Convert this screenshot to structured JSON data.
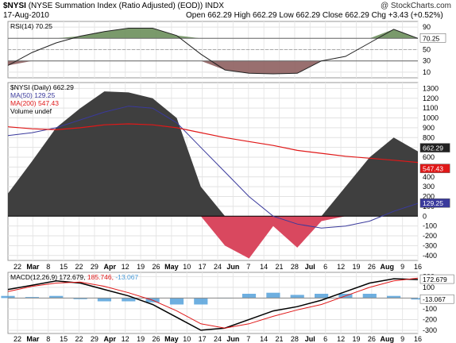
{
  "header": {
    "symbol": "$NYSI",
    "name": "(NYSE Summation Index (Ratio Adjusted) (EOD))",
    "exchange": "INDX",
    "date": "17-Aug-2010",
    "open_label": "Open",
    "open": "662.29",
    "high_label": "High",
    "high": "662.29",
    "low_label": "Low",
    "low": "662.29",
    "close_label": "Close",
    "close": "662.29",
    "chg_label": "Chg",
    "chg": "+3.43 (+0.52%)",
    "watermark": "@ StockCharts.com"
  },
  "colors": {
    "summation_fill": "#3f3f3f",
    "negative_fill": "#d9485f",
    "ma50": "#3a3a9c",
    "ma200": "#e01818",
    "rsi_overbought": "#6b8f5b",
    "rsi_oversold": "#8e5f5f",
    "histogram": "#4a9bd8",
    "macd_line": "#000000",
    "signal_line": "#e01818"
  },
  "chart_data": [
    {
      "type": "line",
      "panel": "RSI",
      "legend": "RSI(14) 70.25",
      "last_value_label": "70.25",
      "y_ticks": [
        10,
        30,
        50,
        70,
        90
      ],
      "ylim": [
        0,
        100
      ],
      "x": [
        0,
        10,
        20,
        30,
        40,
        50,
        60,
        70,
        80,
        90,
        100,
        110,
        120,
        130,
        140,
        150,
        160,
        170
      ],
      "values": [
        22,
        45,
        62,
        74,
        82,
        88,
        88,
        75,
        42,
        14,
        8,
        7,
        8,
        30,
        38,
        62,
        86,
        70
      ]
    },
    {
      "type": "area",
      "panel": "Price",
      "legend_main": "$NYSI (Daily) 662.29",
      "legend_ma50": "MA(50) 129.25",
      "legend_ma200": "MA(200) 547.43",
      "legend_volume": "Volume undef",
      "last_value_label": "662.29",
      "ma50_label": "129.25",
      "ma200_label": "547.43",
      "y_ticks": [
        -400,
        -300,
        -200,
        -100,
        0,
        100,
        200,
        300,
        400,
        500,
        600,
        700,
        800,
        900,
        1000,
        1100,
        1200,
        1300
      ],
      "ylim": [
        -450,
        1360
      ],
      "x_labels": [
        "22",
        "Mar",
        "8",
        "15",
        "22",
        "29",
        "Apr",
        "12",
        "19",
        "26",
        "May",
        "10",
        "17",
        "24",
        "Jun",
        "7",
        "14",
        "21",
        "28",
        "Jul",
        "6",
        "12",
        "19",
        "26",
        "Aug",
        "9",
        "16"
      ],
      "x": [
        0,
        10,
        20,
        30,
        40,
        50,
        60,
        70,
        80,
        90,
        100,
        110,
        120,
        130,
        140,
        150,
        160,
        170
      ],
      "series": [
        {
          "name": "$NYSI",
          "values": [
            230,
            560,
            900,
            1100,
            1270,
            1260,
            1200,
            1000,
            300,
            -300,
            -430,
            -100,
            -320,
            -50,
            300,
            600,
            800,
            660
          ]
        },
        {
          "name": "MA(50)",
          "values": [
            820,
            850,
            900,
            980,
            1060,
            1120,
            1100,
            950,
            700,
            450,
            200,
            0,
            -80,
            -120,
            -100,
            -50,
            50,
            130
          ]
        },
        {
          "name": "MA(200)",
          "values": [
            910,
            890,
            880,
            900,
            930,
            940,
            930,
            900,
            850,
            800,
            760,
            720,
            670,
            640,
            610,
            590,
            570,
            547
          ]
        }
      ]
    },
    {
      "type": "line",
      "panel": "MACD",
      "legend_label": "MACD(12,26,9)",
      "macd_value": "172.679,",
      "signal_value": "185.746,",
      "hist_value": "-13.067",
      "last_macd_label": "172.679",
      "last_hist_label": "-13.067",
      "y_ticks": [
        -300,
        -200,
        -100,
        0,
        100,
        200
      ],
      "ylim": [
        -330,
        240
      ],
      "x": [
        0,
        10,
        20,
        30,
        40,
        50,
        60,
        70,
        80,
        90,
        100,
        110,
        120,
        130,
        140,
        150,
        160,
        170
      ],
      "series": [
        {
          "name": "MACD",
          "values": [
            80,
            120,
            160,
            140,
            80,
            20,
            -60,
            -180,
            -300,
            -280,
            -200,
            -120,
            -80,
            -20,
            60,
            140,
            180,
            173
          ]
        },
        {
          "name": "Signal",
          "values": [
            60,
            110,
            140,
            150,
            110,
            50,
            -20,
            -120,
            -240,
            -280,
            -240,
            -170,
            -110,
            -60,
            20,
            100,
            160,
            186
          ]
        },
        {
          "name": "Histogram",
          "values": [
            20,
            10,
            20,
            -10,
            -30,
            -30,
            -40,
            -60,
            -60,
            0,
            40,
            50,
            30,
            40,
            40,
            40,
            20,
            -13
          ]
        }
      ]
    }
  ]
}
